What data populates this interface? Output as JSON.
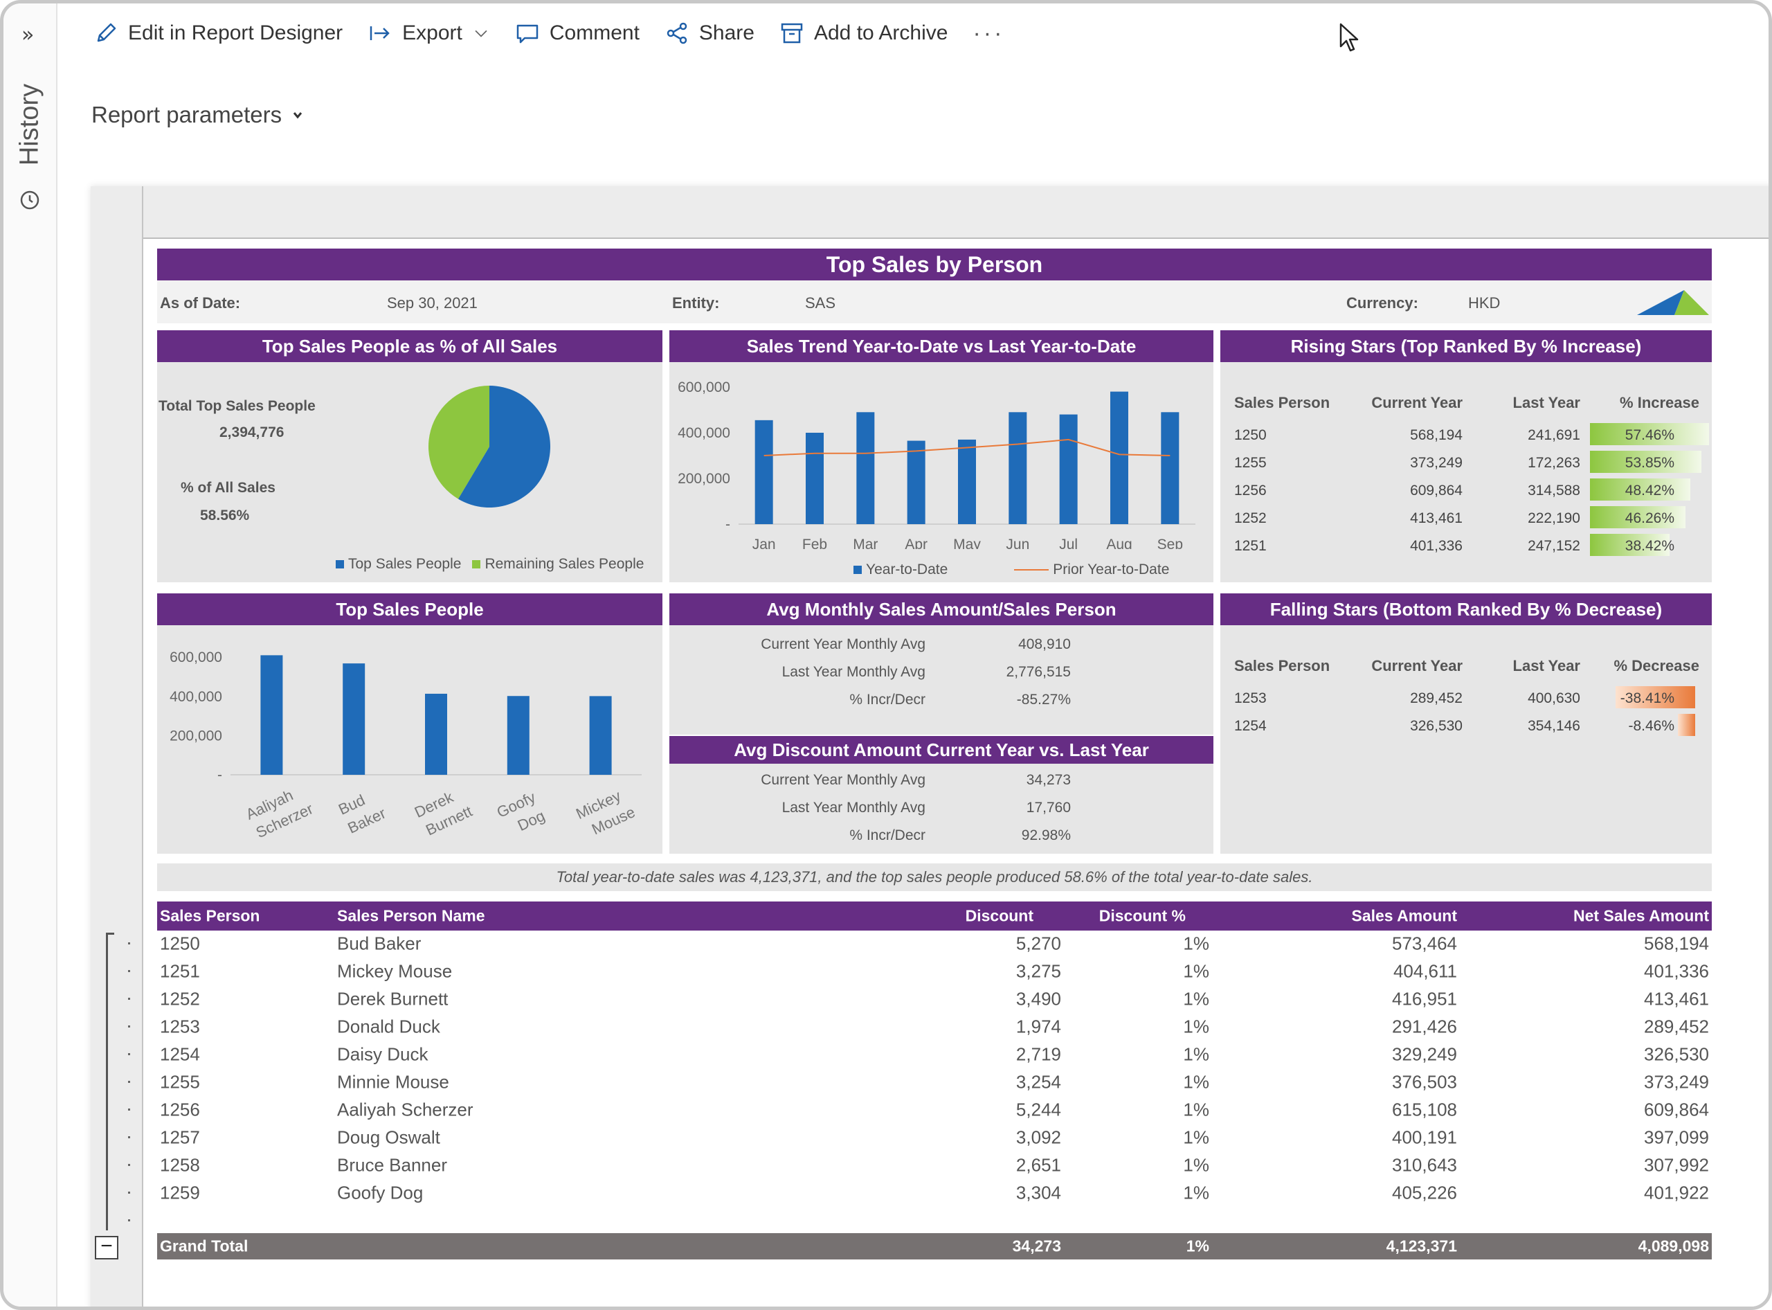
{
  "toolbar": {
    "edit": "Edit in Report Designer",
    "export": "Export",
    "comment": "Comment",
    "share": "Share",
    "archive": "Add to Archive",
    "more": "···"
  },
  "rail": {
    "expand": "»",
    "history": "History"
  },
  "params_label": "Report parameters",
  "report": {
    "title": "Top Sales by Person",
    "as_of_label": "As of Date:",
    "as_of_value": "Sep 30, 2021",
    "entity_label": "Entity:",
    "entity_value": "SAS",
    "currency_label": "Currency:",
    "currency_value": "HKD"
  },
  "pie_panel": {
    "title": "Top Sales People  as % of All Sales",
    "total_label": "Total Top Sales People",
    "total_value": "2,394,776",
    "pct_label": "% of All Sales",
    "pct_value": "58.56%",
    "legend_a": "Top Sales People",
    "legend_b": "Remaining Sales People"
  },
  "trend_panel": {
    "title": "Sales Trend Year-to-Date vs Last Year-to-Date",
    "legend_a": "Year-to-Date",
    "legend_b": "Prior Year-to-Date"
  },
  "rising_panel": {
    "title": "Rising Stars (Top Ranked By % Increase)",
    "headers": [
      "Sales Person",
      "Current Year",
      "Last Year",
      "% Increase"
    ],
    "rows": [
      [
        "1250",
        "568,194",
        "241,691",
        "57.46%"
      ],
      [
        "1255",
        "373,249",
        "172,263",
        "53.85%"
      ],
      [
        "1256",
        "609,864",
        "314,588",
        "48.42%"
      ],
      [
        "1252",
        "413,461",
        "222,190",
        "46.26%"
      ],
      [
        "1251",
        "401,336",
        "247,152",
        "38.42%"
      ]
    ],
    "fractions": [
      0.5746,
      0.5385,
      0.4842,
      0.4626,
      0.3842
    ]
  },
  "topsales_panel": {
    "title": "Top Sales People"
  },
  "avg_panel": {
    "title": "Avg Monthly Sales Amount/Sales Person",
    "rows": [
      [
        "Current Year Monthly Avg",
        "408,910"
      ],
      [
        "Last Year Monthly Avg",
        "2,776,515"
      ],
      [
        "% Incr/Decr",
        "-85.27%"
      ]
    ]
  },
  "discount_panel": {
    "title": "Avg Discount Amount Current Year vs. Last Year",
    "rows": [
      [
        "Current Year Monthly Avg",
        "34,273"
      ],
      [
        "Last Year Monthly Avg",
        "17,760"
      ],
      [
        "% Incr/Decr",
        "92.98%"
      ]
    ]
  },
  "falling_panel": {
    "title": "Falling Stars (Bottom Ranked By % Decrease)",
    "headers": [
      "Sales Person",
      "Current Year",
      "Last Year",
      "% Decrease"
    ],
    "rows": [
      [
        "1253",
        "289,452",
        "400,630",
        "-38.41%"
      ],
      [
        "1254",
        "326,530",
        "354,146",
        "-8.46%"
      ]
    ],
    "fractions": [
      0.3841,
      0.0846
    ]
  },
  "summary": "Total year-to-date sales was 4,123,371, and the top sales people produced 58.6% of the total year-to-date sales.",
  "detail": {
    "headers": [
      "Sales Person",
      "Sales Person Name",
      "Discount",
      "Discount %",
      "Sales Amount",
      "Net Sales Amount"
    ],
    "rows": [
      [
        "1250",
        "Bud Baker",
        "5,270",
        "1%",
        "573,464",
        "568,194"
      ],
      [
        "1251",
        "Mickey Mouse",
        "3,275",
        "1%",
        "404,611",
        "401,336"
      ],
      [
        "1252",
        "Derek Burnett",
        "3,490",
        "1%",
        "416,951",
        "413,461"
      ],
      [
        "1253",
        "Donald Duck",
        "1,974",
        "1%",
        "291,426",
        "289,452"
      ],
      [
        "1254",
        "Daisy Duck",
        "2,719",
        "1%",
        "329,249",
        "326,530"
      ],
      [
        "1255",
        "Minnie Mouse",
        "3,254",
        "1%",
        "376,503",
        "373,249"
      ],
      [
        "1256",
        "Aaliyah Scherzer",
        "5,244",
        "1%",
        "615,108",
        "609,864"
      ],
      [
        "1257",
        "Doug Oswalt",
        "3,092",
        "1%",
        "400,191",
        "397,099"
      ],
      [
        "1258",
        "Bruce Banner",
        "2,651",
        "1%",
        "310,643",
        "307,992"
      ],
      [
        "1259",
        "Goofy Dog",
        "3,304",
        "1%",
        "405,226",
        "401,922"
      ]
    ],
    "total": [
      "Grand Total",
      "34,273",
      "1%",
      "4,123,371",
      "4,089,098"
    ]
  },
  "colors": {
    "purple": "#662d84",
    "blue": "#1f6bb8",
    "green": "#8dc63f",
    "orange": "#e97a3a",
    "total_bg": "#767171"
  },
  "chart_data": [
    {
      "type": "pie",
      "title": "Top Sales People  as % of All Sales",
      "slices": [
        {
          "name": "Top Sales People",
          "value": 58.56,
          "color": "#1f6bb8"
        },
        {
          "name": "Remaining Sales People",
          "value": 41.44,
          "color": "#8dc63f"
        }
      ],
      "legend": "bottom"
    },
    {
      "type": "bar",
      "title": "Sales Trend Year-to-Date vs Last Year-to-Date",
      "categories": [
        "Jan",
        "Feb",
        "Mar",
        "Apr",
        "May",
        "Jun",
        "Jul",
        "Aug",
        "Sep"
      ],
      "y_ticks": [
        "600,000",
        "400,000",
        "200,000",
        "-"
      ],
      "ylim": [
        0,
        600000
      ],
      "series": [
        {
          "name": "Year-to-Date",
          "type": "bar",
          "values": [
            455000,
            400000,
            490000,
            365000,
            370000,
            490000,
            480000,
            580000,
            490000
          ]
        },
        {
          "name": "Prior Year-to-Date",
          "type": "line",
          "values": [
            300000,
            310000,
            310000,
            320000,
            335000,
            350000,
            370000,
            305000,
            300000
          ]
        }
      ],
      "legend": "bottom"
    },
    {
      "type": "bar",
      "title": "Top Sales People",
      "categories": [
        [
          "Aaliyah",
          "Scherzer"
        ],
        [
          "Bud",
          "Baker"
        ],
        [
          "Derek",
          "Burnett"
        ],
        [
          "Goofy",
          "Dog"
        ],
        [
          "Mickey",
          "Mouse"
        ]
      ],
      "y_ticks": [
        "600,000",
        "400,000",
        "200,000",
        "-"
      ],
      "ylim": [
        0,
        650000
      ],
      "values": [
        609864,
        568194,
        413461,
        401922,
        401336
      ]
    }
  ]
}
